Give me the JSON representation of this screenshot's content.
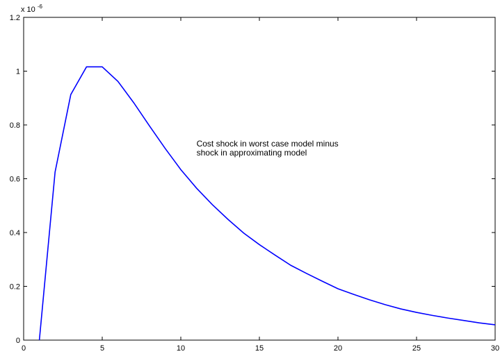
{
  "chart_data": {
    "type": "line",
    "title": "",
    "xlabel": "",
    "ylabel": "",
    "xlim": [
      0,
      30
    ],
    "ylim": [
      0,
      1.2
    ],
    "x_ticks": [
      "0",
      "5",
      "10",
      "15",
      "20",
      "25",
      "30"
    ],
    "y_ticks": [
      "0",
      "0.2",
      "0.4",
      "0.6",
      "0.8",
      "1",
      "1.2"
    ],
    "y_exponent_label": "x 10",
    "y_exponent_power": "-6",
    "grid": false,
    "line_color": "#0000ff",
    "series": [
      {
        "x": [
          1,
          2,
          3,
          4,
          5,
          6,
          7,
          8,
          9,
          10,
          11,
          12,
          13,
          14,
          15,
          16,
          17,
          18,
          19,
          20,
          21,
          22,
          23,
          24,
          25,
          26,
          27,
          28,
          29,
          30
        ],
        "values": [
          0,
          0.625,
          0.913,
          1.016,
          1.016,
          0.962,
          0.883,
          0.797,
          0.713,
          0.634,
          0.565,
          0.504,
          0.449,
          0.398,
          0.355,
          0.316,
          0.278,
          0.248,
          0.219,
          0.191,
          0.17,
          0.15,
          0.132,
          0.116,
          0.103,
          0.092,
          0.082,
          0.073,
          0.064,
          0.057
        ]
      }
    ],
    "annotation_lines": [
      "Cost shock in worst case model minus",
      "shock in approximating model"
    ],
    "annotation_position": {
      "x": 11,
      "y": 0.72
    }
  }
}
